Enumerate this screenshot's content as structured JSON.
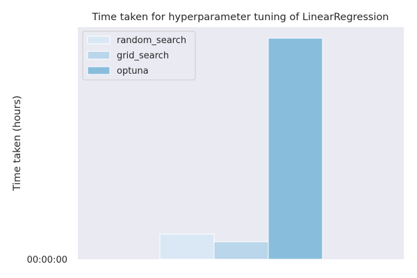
{
  "chart_data": {
    "type": "bar",
    "title": "Time taken for hyperparameter tuning of LinearRegression",
    "xlabel": "",
    "ylabel": "Time taken (hours)",
    "y_tick_labels": [
      "00:00:00"
    ],
    "categories": [
      ""
    ],
    "series": [
      {
        "name": "random_search",
        "values": [
          0.114
        ],
        "color": "#dae8f5"
      },
      {
        "name": "grid_search",
        "values": [
          0.079
        ],
        "color": "#b9d6ea"
      },
      {
        "name": "optuna",
        "values": [
          1.0
        ],
        "color": "#88bedc"
      }
    ],
    "ylim": [
      0,
      1.05
    ],
    "grid": false,
    "legend_position": "upper-left",
    "background_color": "#eaeaf2"
  }
}
